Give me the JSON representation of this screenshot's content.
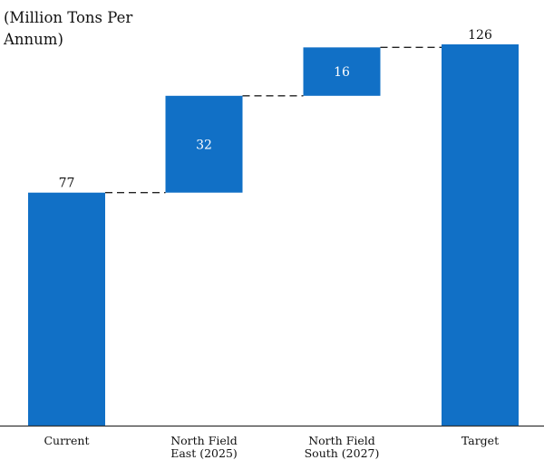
{
  "chart_data": {
    "type": "bar",
    "subtype": "waterfall",
    "unit_label": "(Million Tons Per Annum)",
    "categories": [
      [
        "Current"
      ],
      [
        "North Field",
        "East (2025)"
      ],
      [
        "North Field",
        "South (2027)"
      ],
      [
        "Target"
      ]
    ],
    "values": [
      77,
      32,
      16,
      126
    ],
    "bar_kinds": [
      "total",
      "increment",
      "increment",
      "total"
    ],
    "ylim": [
      0,
      126
    ],
    "legend": "none",
    "grid": false,
    "colors": {
      "bar": "#1170c6",
      "connector": "#222222",
      "axis": "#333333",
      "label_outside": "#111111",
      "label_inside": "#ffffff"
    }
  }
}
